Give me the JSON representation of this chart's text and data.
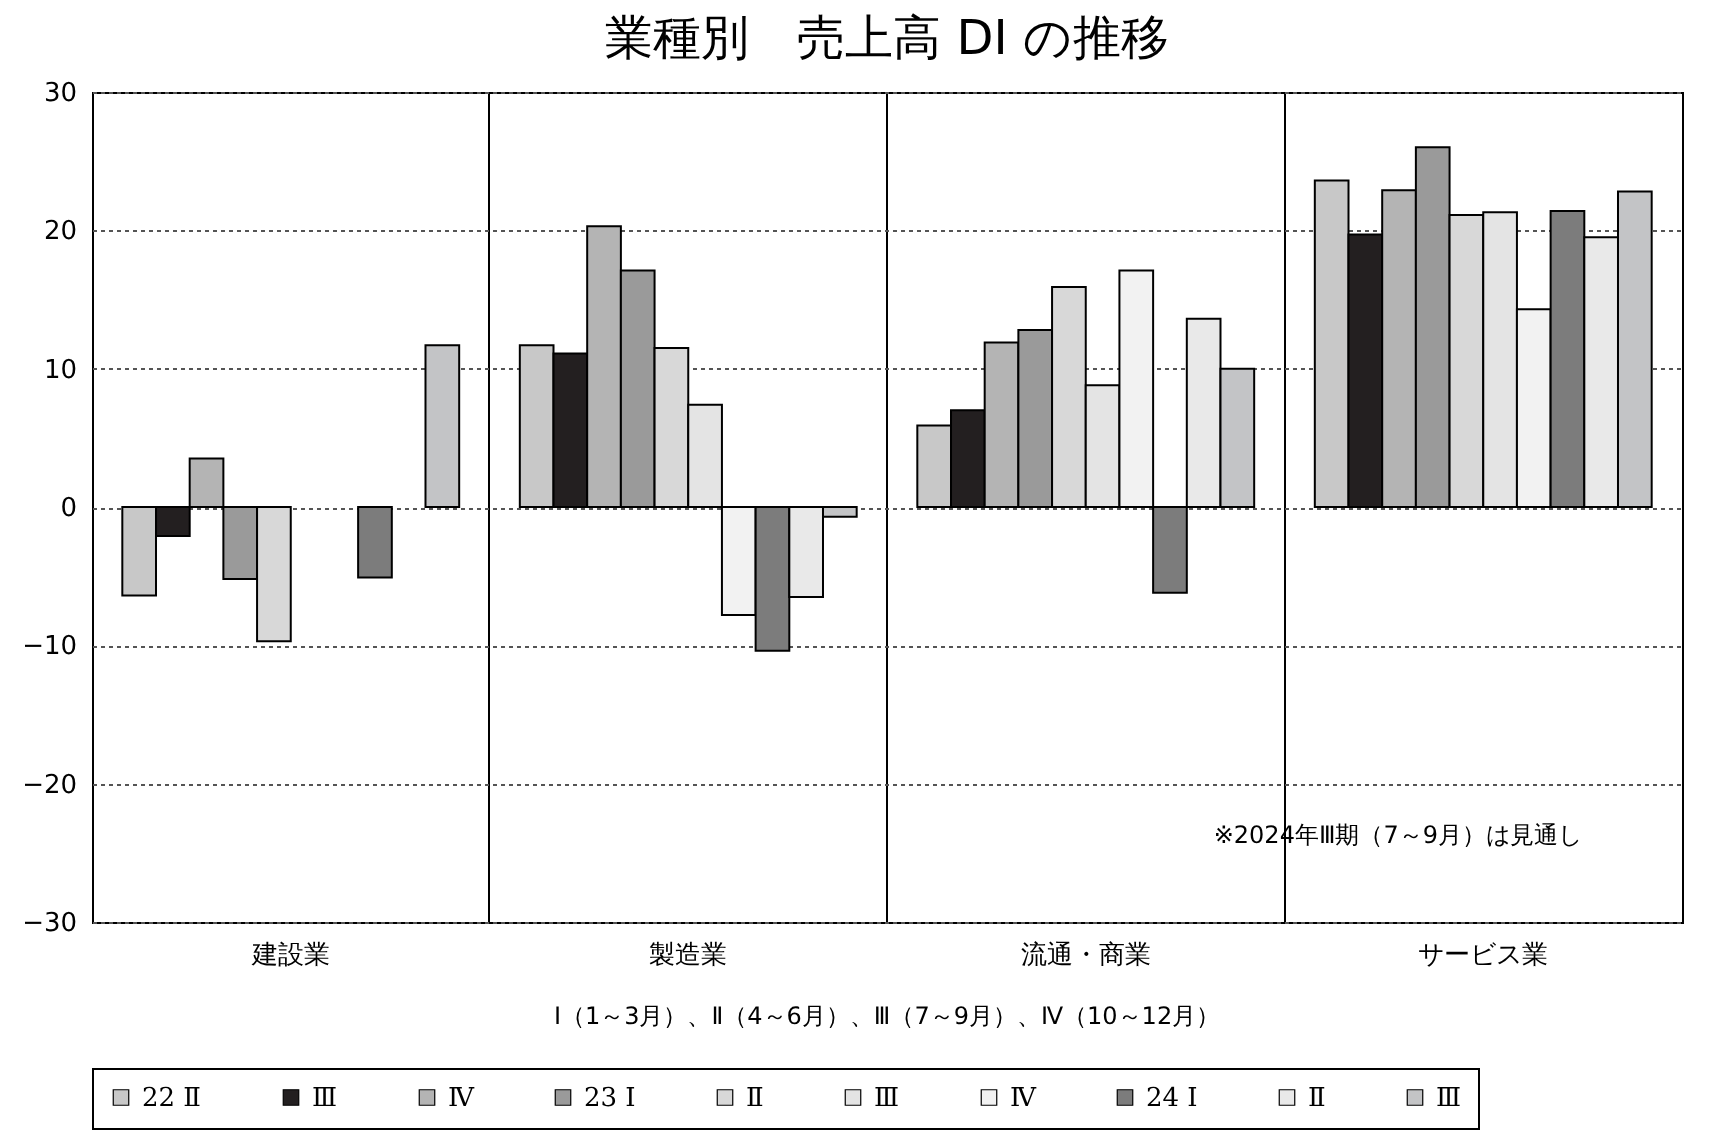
{
  "chart_data": {
    "type": "bar",
    "title": "業種別　売上高 DI の推移",
    "categories": [
      "建設業",
      "製造業",
      "流通・商業",
      "サービス業"
    ],
    "series": [
      {
        "name": "22 Ⅱ",
        "color": "#c8c8c8",
        "values": [
          -6.4,
          11.7,
          5.9,
          23.6
        ]
      },
      {
        "name": "Ⅲ",
        "color": "#231f20",
        "values": [
          -2.1,
          11.1,
          7.0,
          19.7
        ]
      },
      {
        "name": "Ⅳ",
        "color": "#b4b4b4",
        "values": [
          3.5,
          20.3,
          11.9,
          22.9
        ]
      },
      {
        "name": "23 Ⅰ",
        "color": "#9a9a9a",
        "values": [
          -5.2,
          17.1,
          12.8,
          26.0
        ]
      },
      {
        "name": "Ⅱ",
        "color": "#d8d8d8",
        "values": [
          -9.7,
          11.5,
          15.9,
          21.1
        ]
      },
      {
        "name": "Ⅲ",
        "color": "#e4e4e4",
        "values": [
          null,
          7.4,
          8.8,
          21.3
        ]
      },
      {
        "name": "Ⅳ",
        "color": "#f2f2f2",
        "values": [
          null,
          -7.8,
          17.1,
          14.3
        ]
      },
      {
        "name": "24 Ⅰ",
        "color": "#7c7c7c",
        "values": [
          -5.1,
          -10.4,
          -6.2,
          21.4
        ]
      },
      {
        "name": "Ⅱ",
        "color": "#e9e9e9",
        "values": [
          null,
          -6.5,
          13.6,
          19.5
        ]
      },
      {
        "name": "Ⅲ",
        "color": "#c3c4c6",
        "values": [
          11.7,
          -0.7,
          10.0,
          22.8
        ]
      }
    ],
    "ylim": [
      -30,
      30
    ],
    "yticks": [
      -30,
      -20,
      -10,
      0,
      10,
      20,
      30
    ],
    "grid": true,
    "legend": "bottom",
    "annotations": [
      "※2024年Ⅲ期（7～9月）は見通し",
      "Ⅰ（1～3月）、Ⅱ（4～6月）、Ⅲ（7～9月）、Ⅳ（10～12月）"
    ]
  }
}
